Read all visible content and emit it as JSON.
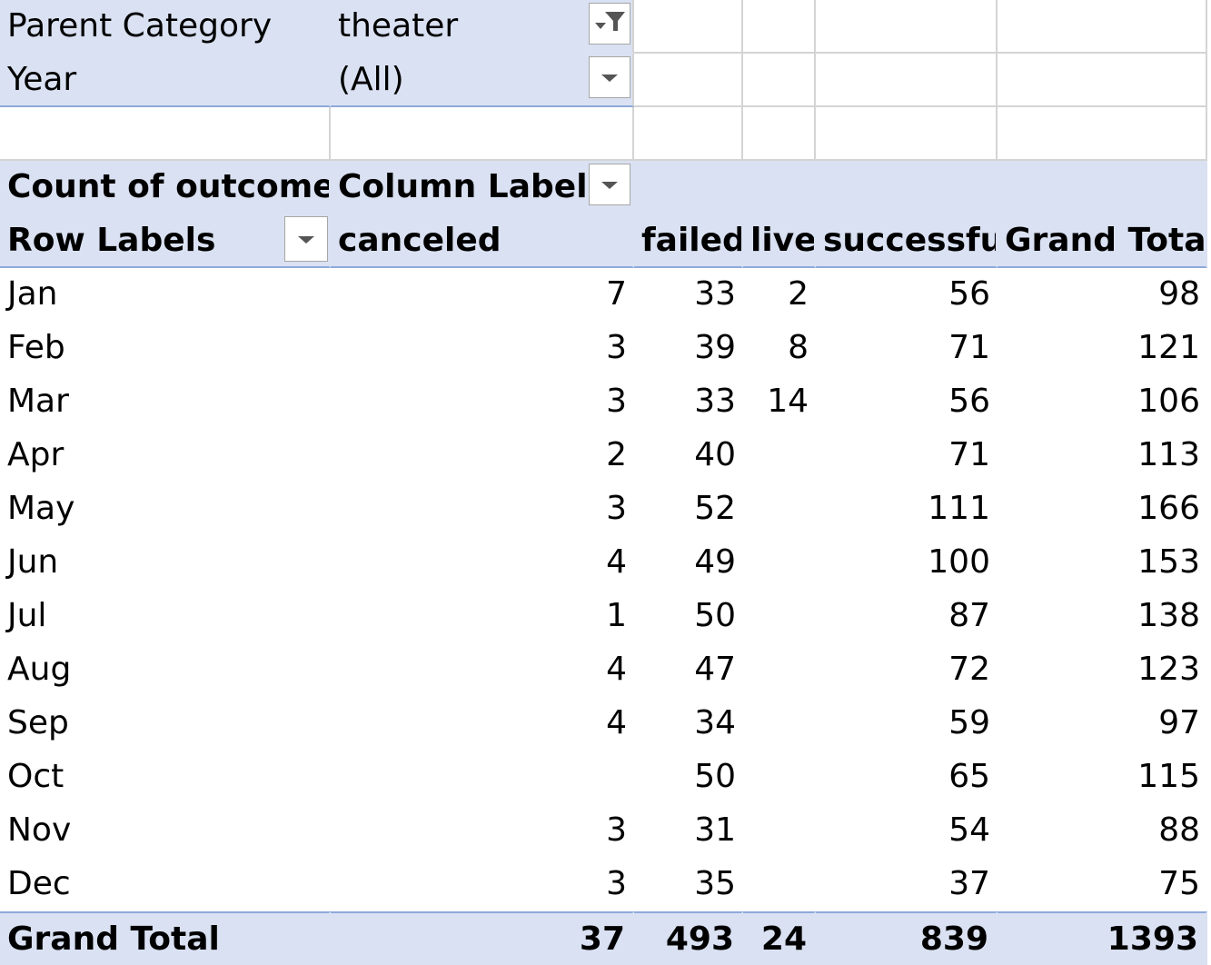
{
  "filters": [
    {
      "label": "Parent Category",
      "value": "theater",
      "icon": "filter-dropdown-icon"
    },
    {
      "label": "Year",
      "value": "(All)",
      "icon": "chevron-down-icon"
    }
  ],
  "pivot": {
    "value_field": "Count of outcomes",
    "column_labels": "Column Labels",
    "row_labels": "Row Labels",
    "columns": [
      "canceled",
      "failed",
      "live",
      "successful",
      "Grand Total"
    ],
    "rows": [
      {
        "label": "Jan",
        "values": [
          "7",
          "33",
          "2",
          "56",
          "98"
        ]
      },
      {
        "label": "Feb",
        "values": [
          "3",
          "39",
          "8",
          "71",
          "121"
        ]
      },
      {
        "label": "Mar",
        "values": [
          "3",
          "33",
          "14",
          "56",
          "106"
        ]
      },
      {
        "label": "Apr",
        "values": [
          "2",
          "40",
          "",
          "71",
          "113"
        ]
      },
      {
        "label": "May",
        "values": [
          "3",
          "52",
          "",
          "111",
          "166"
        ]
      },
      {
        "label": "Jun",
        "values": [
          "4",
          "49",
          "",
          "100",
          "153"
        ]
      },
      {
        "label": "Jul",
        "values": [
          "1",
          "50",
          "",
          "87",
          "138"
        ]
      },
      {
        "label": "Aug",
        "values": [
          "4",
          "47",
          "",
          "72",
          "123"
        ]
      },
      {
        "label": "Sep",
        "values": [
          "4",
          "34",
          "",
          "59",
          "97"
        ]
      },
      {
        "label": "Oct",
        "values": [
          "",
          "50",
          "",
          "65",
          "115"
        ]
      },
      {
        "label": "Nov",
        "values": [
          "3",
          "31",
          "",
          "54",
          "88"
        ]
      },
      {
        "label": "Dec",
        "values": [
          "3",
          "35",
          "",
          "37",
          "75"
        ]
      }
    ],
    "grand_total": {
      "label": "Grand Total",
      "values": [
        "37",
        "493",
        "24",
        "839",
        "1393"
      ]
    }
  },
  "colors": {
    "band": "#d9e1f2",
    "gridline": "#d4d4d4",
    "accent_line": "#8ea9db"
  }
}
